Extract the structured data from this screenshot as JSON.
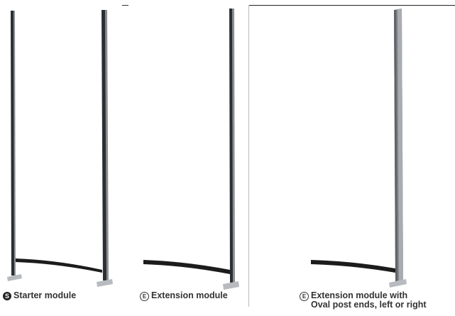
{
  "modules": [
    {
      "badge": "S",
      "badge_style": "filled",
      "caption_lines": [
        "Starter module"
      ]
    },
    {
      "badge": "E",
      "badge_style": "outline",
      "caption_lines": [
        "Extension module"
      ]
    },
    {
      "badge": "E",
      "badge_style": "outline",
      "caption_lines": [
        "Extension module with",
        "Oval post ends, left or right"
      ]
    }
  ],
  "colors": {
    "post_dark": "#2b2e33",
    "post_light": "#9a9ea3",
    "beam": "#1c1c1c",
    "oval_post": "#8e9297"
  }
}
